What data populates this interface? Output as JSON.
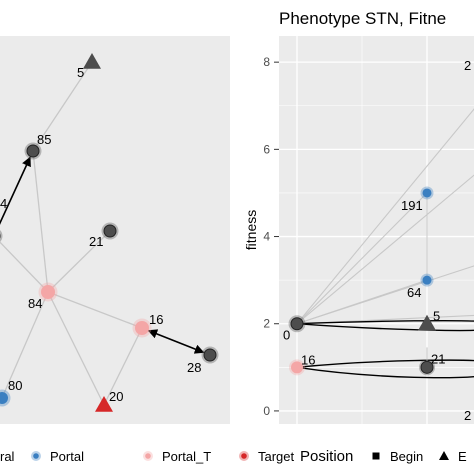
{
  "colors": {
    "panel_bg": "#ebebeb",
    "grid": "#ffffff",
    "edge_light": "#c8c8c8",
    "edge_dark": "#000000",
    "node_dark": "#4d4d4d",
    "portal": "#3a7fc1",
    "portal_t": "#f4a6a6",
    "target": "#d62728",
    "begin_gray": "#3c3c3c"
  },
  "chart_data": [
    {
      "type": "network",
      "title": "",
      "nodes": [
        {
          "id": "5",
          "label": "5",
          "kind": "end",
          "shape": "triangle",
          "color": "dark"
        },
        {
          "id": "85",
          "label": "85",
          "kind": "neutral",
          "shape": "circle",
          "color": "dark"
        },
        {
          "id": "4",
          "label": "4",
          "kind": "neutral",
          "shape": "circle",
          "color": "dark"
        },
        {
          "id": "21",
          "label": "21",
          "kind": "neutral",
          "shape": "circle",
          "color": "dark"
        },
        {
          "id": "84",
          "label": "84",
          "kind": "portal_t",
          "shape": "circle",
          "color": "portal_t"
        },
        {
          "id": "16",
          "label": "16",
          "kind": "portal_t",
          "shape": "circle",
          "color": "portal_t"
        },
        {
          "id": "28",
          "label": "28",
          "kind": "neutral",
          "shape": "circle",
          "color": "dark"
        },
        {
          "id": "80",
          "label": "80",
          "kind": "portal",
          "shape": "circle",
          "color": "portal"
        },
        {
          "id": "20",
          "label": "20",
          "kind": "target",
          "shape": "triangle",
          "color": "target"
        }
      ],
      "edges": [
        {
          "from": "85",
          "to": "5",
          "style": "light"
        },
        {
          "from": "4",
          "to": "85",
          "style": "dark-arrow"
        },
        {
          "from": "4",
          "to": "84",
          "style": "light"
        },
        {
          "from": "84",
          "to": "21",
          "style": "light"
        },
        {
          "from": "84",
          "to": "85",
          "style": "light"
        },
        {
          "from": "84",
          "to": "16",
          "style": "light"
        },
        {
          "from": "84",
          "to": "20",
          "style": "light"
        },
        {
          "from": "84",
          "to": "80",
          "style": "light"
        },
        {
          "from": "16",
          "to": "20",
          "style": "light"
        },
        {
          "from": "16",
          "to": "28",
          "style": "dark-arrow-both"
        }
      ]
    },
    {
      "type": "scatter",
      "title": "Phenotype STN, Fitne",
      "xlabel": "",
      "ylabel": "fitness",
      "ylim": [
        -0.3,
        8.6
      ],
      "yticks": [
        0,
        2,
        4,
        6,
        8
      ],
      "grid": true,
      "points": [
        {
          "label": "0",
          "x": 0,
          "y": 2.0,
          "kind": "begin"
        },
        {
          "label": "5",
          "x": 1,
          "y": 2.0,
          "kind": "end"
        },
        {
          "label": "191",
          "x": 1,
          "y": 5.0,
          "kind": "portal"
        },
        {
          "label": "64",
          "x": 1,
          "y": 3.0,
          "kind": "portal"
        },
        {
          "label": "16",
          "x": 0,
          "y": 1.0,
          "kind": "portal_t"
        },
        {
          "label": "21",
          "x": 1,
          "y": 1.0,
          "kind": "neutral"
        },
        {
          "label": "2",
          "x": 1.3,
          "y": 7.8,
          "kind": "offscreen"
        },
        {
          "label": "2",
          "x": 1.3,
          "y": 0.0,
          "kind": "offscreen"
        }
      ]
    }
  ],
  "legend": {
    "row1": [
      {
        "label": "ral",
        "symbol": "neutral"
      },
      {
        "label": "Portal",
        "symbol": "portal"
      },
      {
        "label": "Portal_T",
        "symbol": "portal_t"
      },
      {
        "label": "Target",
        "symbol": "target"
      }
    ],
    "row2_title": "Position",
    "row2": [
      {
        "label": "Begin",
        "symbol": "square"
      },
      {
        "label": "E",
        "symbol": "triangle"
      }
    ]
  }
}
